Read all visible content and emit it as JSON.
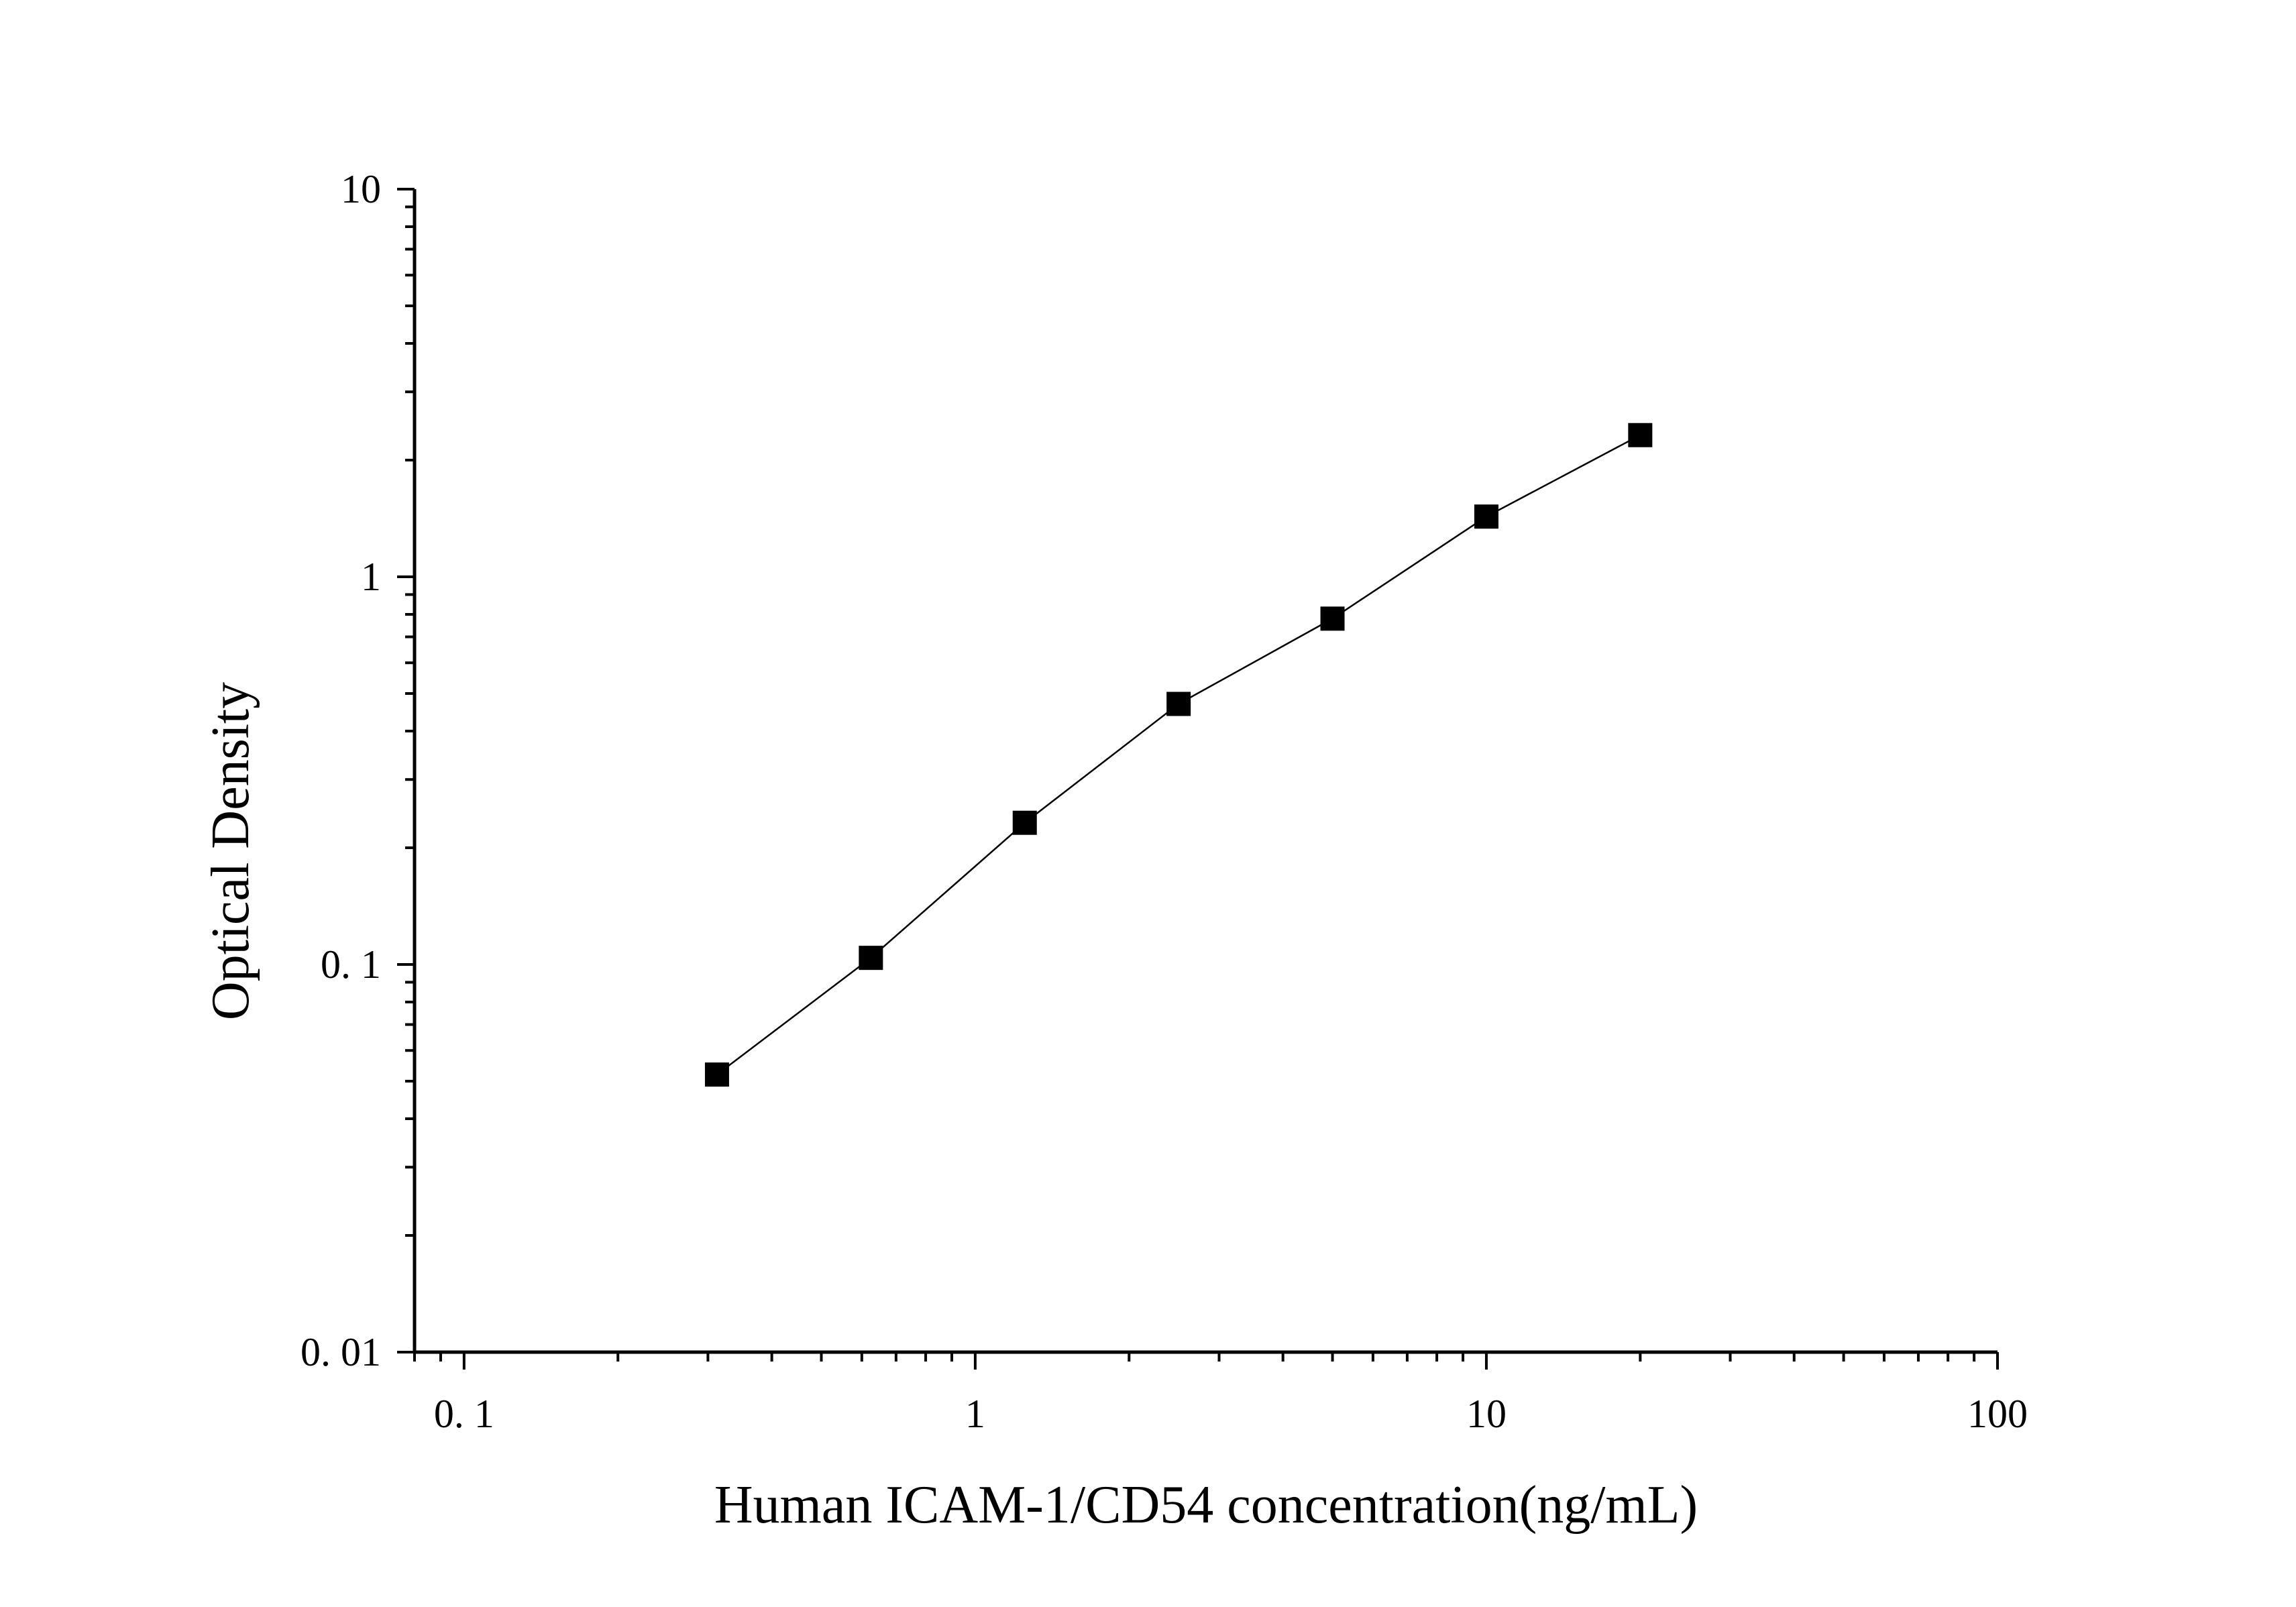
{
  "chart_data": {
    "type": "line",
    "title": "",
    "xlabel": "Human ICAM-1/CD54 concentration(ng/mL)",
    "ylabel": "Optical Density",
    "xscale": "log",
    "yscale": "log",
    "xlim": [
      0.08,
      100
    ],
    "ylim": [
      0.01,
      10
    ],
    "x_tick_labels": [
      {
        "value": 0.1,
        "label": "0. 1"
      },
      {
        "value": 1,
        "label": "1"
      },
      {
        "value": 10,
        "label": "10"
      },
      {
        "value": 100,
        "label": "100"
      }
    ],
    "y_tick_labels": [
      {
        "value": 0.01,
        "label": "0. 01"
      },
      {
        "value": 0.1,
        "label": "0. 1"
      },
      {
        "value": 1,
        "label": "1"
      },
      {
        "value": 10,
        "label": "10"
      }
    ],
    "grid": false,
    "marker": "square",
    "series": [
      {
        "x": [
          0.3125,
          0.625,
          1.25,
          2.5,
          5,
          10,
          20
        ],
        "y": [
          0.052,
          0.104,
          0.232,
          0.47,
          0.78,
          1.43,
          2.32
        ]
      }
    ],
    "colors": {
      "line": "#000000",
      "marker": "#000000",
      "axis": "#000000",
      "background": "#ffffff"
    }
  }
}
